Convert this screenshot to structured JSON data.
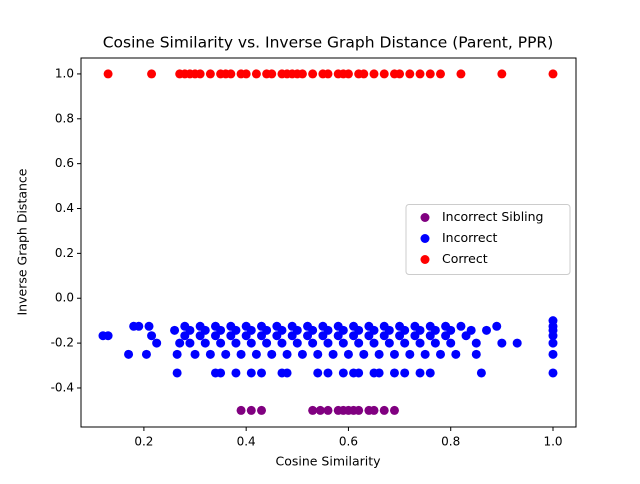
{
  "chart_data": {
    "type": "scatter",
    "title": "Cosine Similarity vs. Inverse Graph Distance (Parent, PPR)",
    "x_label": "Cosine Similarity",
    "y_label": "Inverse Graph Distance",
    "xlim": [
      0.077,
      1.045
    ],
    "ylim": [
      -0.574,
      1.071
    ],
    "xticks": [
      0.2,
      0.4,
      0.6,
      0.8,
      {
        "value": 1,
        "label": "1.0"
      }
    ],
    "yticks": [
      -0.4,
      -0.2,
      {
        "value": 0,
        "label": "0.0"
      },
      0.2,
      0.4,
      0.6,
      0.8,
      {
        "value": 1,
        "label": "1.0"
      }
    ],
    "legend": "center right",
    "series": [
      {
        "name": "Incorrect Sibling",
        "color": "#800080",
        "x": [
          0.39,
          0.41,
          0.43,
          0.53,
          0.545,
          0.56,
          0.58,
          0.59,
          0.6,
          0.61,
          0.62,
          0.64,
          0.65,
          0.67,
          0.69
        ],
        "values": [
          -0.5,
          -0.5,
          -0.5,
          -0.5,
          -0.5,
          -0.5,
          -0.5,
          -0.5,
          -0.5,
          -0.5,
          -0.5,
          -0.5,
          -0.5,
          -0.5,
          -0.5
        ]
      },
      {
        "name": "Incorrect",
        "color": "#0000ff",
        "x": [
          0.28,
          0.31,
          0.34,
          0.37,
          0.4,
          0.43,
          0.46,
          0.49,
          0.52,
          0.55,
          0.58,
          0.61,
          0.64,
          0.67,
          0.7,
          0.73,
          0.76,
          0.79,
          0.82,
          0.29,
          0.32,
          0.35,
          0.38,
          0.41,
          0.44,
          0.47,
          0.5,
          0.53,
          0.56,
          0.59,
          0.62,
          0.65,
          0.68,
          0.71,
          0.74,
          0.77,
          0.8,
          0.84,
          0.28,
          0.31,
          0.34,
          0.37,
          0.4,
          0.43,
          0.46,
          0.49,
          0.52,
          0.55,
          0.58,
          0.61,
          0.64,
          0.67,
          0.7,
          0.73,
          0.76,
          0.79,
          0.83,
          0.29,
          0.32,
          0.35,
          0.38,
          0.41,
          0.44,
          0.47,
          0.5,
          0.53,
          0.56,
          0.59,
          0.62,
          0.65,
          0.68,
          0.71,
          0.74,
          0.77,
          0.8,
          0.85,
          0.3,
          0.33,
          0.36,
          0.39,
          0.42,
          0.45,
          0.48,
          0.51,
          0.54,
          0.57,
          0.6,
          0.63,
          0.66,
          0.69,
          0.72,
          0.75,
          0.78,
          0.81,
          0.85,
          0.34,
          0.35,
          0.38,
          0.41,
          0.43,
          0.47,
          0.48,
          0.54,
          0.56,
          0.59,
          0.61,
          0.62,
          0.65,
          0.66,
          0.69,
          0.71,
          0.74,
          0.76,
          0.12,
          0.13,
          0.17,
          0.18,
          0.19,
          0.205,
          0.21,
          0.215,
          0.225,
          0.26,
          0.265,
          0.265,
          0.27,
          0.86,
          0.87,
          0.89,
          0.9,
          0.93,
          1.0,
          1.0,
          1.0,
          1.0,
          1.0,
          1.0,
          1.0
        ],
        "values": [
          -0.125,
          -0.125,
          -0.125,
          -0.125,
          -0.125,
          -0.125,
          -0.125,
          -0.125,
          -0.125,
          -0.125,
          -0.125,
          -0.125,
          -0.125,
          -0.125,
          -0.125,
          -0.125,
          -0.125,
          -0.125,
          -0.125,
          -0.143,
          -0.143,
          -0.143,
          -0.143,
          -0.143,
          -0.143,
          -0.143,
          -0.143,
          -0.143,
          -0.143,
          -0.143,
          -0.143,
          -0.143,
          -0.143,
          -0.143,
          -0.143,
          -0.143,
          -0.143,
          -0.143,
          -0.167,
          -0.167,
          -0.167,
          -0.167,
          -0.167,
          -0.167,
          -0.167,
          -0.167,
          -0.167,
          -0.167,
          -0.167,
          -0.167,
          -0.167,
          -0.167,
          -0.167,
          -0.167,
          -0.167,
          -0.167,
          -0.167,
          -0.2,
          -0.2,
          -0.2,
          -0.2,
          -0.2,
          -0.2,
          -0.2,
          -0.2,
          -0.2,
          -0.2,
          -0.2,
          -0.2,
          -0.2,
          -0.2,
          -0.2,
          -0.2,
          -0.2,
          -0.2,
          -0.2,
          -0.25,
          -0.25,
          -0.25,
          -0.25,
          -0.25,
          -0.25,
          -0.25,
          -0.25,
          -0.25,
          -0.25,
          -0.25,
          -0.25,
          -0.25,
          -0.25,
          -0.25,
          -0.25,
          -0.25,
          -0.25,
          -0.25,
          -0.333,
          -0.333,
          -0.333,
          -0.333,
          -0.333,
          -0.333,
          -0.333,
          -0.333,
          -0.333,
          -0.333,
          -0.333,
          -0.333,
          -0.333,
          -0.333,
          -0.333,
          -0.333,
          -0.333,
          -0.333,
          -0.167,
          -0.167,
          -0.25,
          -0.125,
          -0.125,
          -0.25,
          -0.125,
          -0.167,
          -0.2,
          -0.143,
          -0.25,
          -0.333,
          -0.2,
          -0.333,
          -0.143,
          -0.125,
          -0.2,
          -0.2,
          -0.1,
          -0.125,
          -0.143,
          -0.167,
          -0.2,
          -0.25,
          -0.333
        ]
      },
      {
        "name": "Correct",
        "color": "#ff0000",
        "x": [
          0.13,
          0.215,
          0.27,
          0.28,
          0.29,
          0.3,
          0.31,
          0.33,
          0.35,
          0.36,
          0.37,
          0.39,
          0.4,
          0.42,
          0.44,
          0.45,
          0.47,
          0.48,
          0.49,
          0.5,
          0.51,
          0.53,
          0.55,
          0.56,
          0.58,
          0.59,
          0.6,
          0.62,
          0.63,
          0.65,
          0.67,
          0.69,
          0.7,
          0.72,
          0.74,
          0.76,
          0.78,
          0.82,
          0.9,
          1.0
        ],
        "values": [
          1,
          1,
          1,
          1,
          1,
          1,
          1,
          1,
          1,
          1,
          1,
          1,
          1,
          1,
          1,
          1,
          1,
          1,
          1,
          1,
          1,
          1,
          1,
          1,
          1,
          1,
          1,
          1,
          1,
          1,
          1,
          1,
          1,
          1,
          1,
          1,
          1,
          1,
          1,
          1
        ]
      }
    ]
  }
}
